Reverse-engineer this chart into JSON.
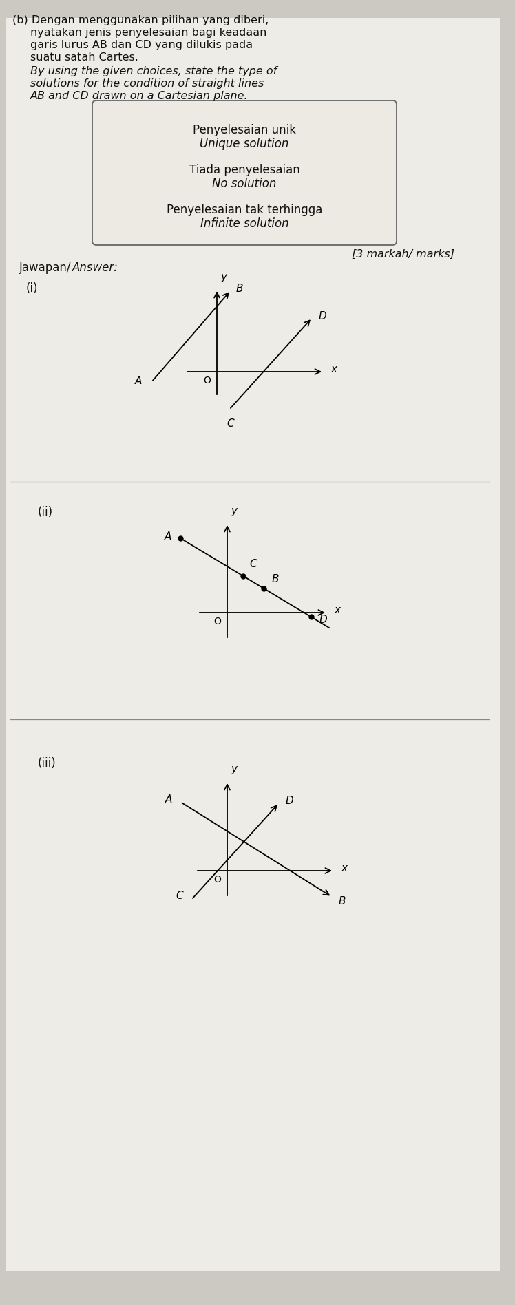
{
  "bg_color": "#cbc9c2",
  "paper_color": "#eeece6",
  "title_lines": [
    [
      "(b)",
      "Dengan menggunakan pilihan yang diberi,",
      false
    ],
    [
      "",
      "nyatakan jenis penyelesaian bagi keadaan",
      false
    ],
    [
      "",
      "garis lurus AB dan CD yang dilukis pada",
      false
    ],
    [
      "",
      "suatu satah Cartes.",
      false
    ],
    [
      "",
      "By using the given choices, state the type of",
      true
    ],
    [
      "",
      "solutions for the condition of straight lines",
      true
    ],
    [
      "",
      "AB and CD drawn on a Cartesian plane.",
      true
    ]
  ],
  "box_text": [
    [
      "Penyelesaian unik",
      false
    ],
    [
      "Unique solution",
      true
    ],
    [
      "Tiada penyelesaian",
      false
    ],
    [
      "No solution",
      true
    ],
    [
      "Penyelesaian tak terhingga",
      false
    ],
    [
      "Infinite solution",
      true
    ]
  ],
  "marks_text": "[3 markah/ marks]",
  "jawapan_normal": "Jawapan/ ",
  "jawapan_italic": "Answer:",
  "section_labels": [
    "(i)",
    "(ii)",
    "(iii)"
  ]
}
